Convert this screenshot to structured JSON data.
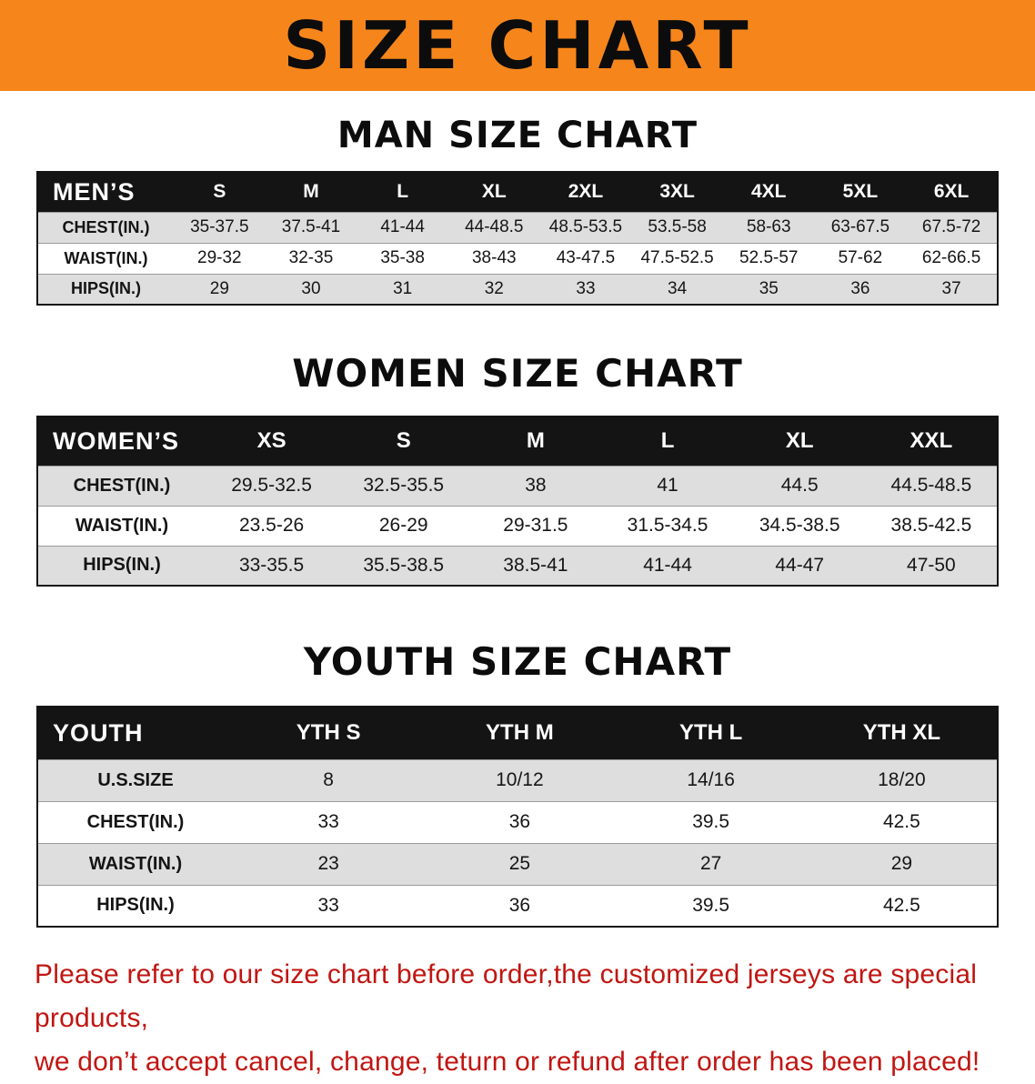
{
  "banner": {
    "title": "SIZE CHART"
  },
  "colors": {
    "banner_bg": "#f6861b",
    "header_bg": "#141414",
    "header_text": "#ffffff",
    "row_shade": "#dedede",
    "notice_text": "#c01612"
  },
  "sections": [
    {
      "key": "men",
      "heading": "MAN SIZE CHART",
      "corner_label": "MEN’S",
      "columns": [
        "S",
        "M",
        "L",
        "XL",
        "2XL",
        "3XL",
        "4XL",
        "5XL",
        "6XL"
      ],
      "rows": [
        {
          "label": "CHEST(IN.)",
          "values": [
            "35-37.5",
            "37.5-41",
            "41-44",
            "44-48.5",
            "48.5-53.5",
            "53.5-58",
            "58-63",
            "63-67.5",
            "67.5-72"
          ]
        },
        {
          "label": "WAIST(IN.)",
          "values": [
            "29-32",
            "32-35",
            "35-38",
            "38-43",
            "43-47.5",
            "47.5-52.5",
            "52.5-57",
            "57-62",
            "62-66.5"
          ]
        },
        {
          "label": "HIPS(IN.)",
          "values": [
            "29",
            "30",
            "31",
            "32",
            "33",
            "34",
            "35",
            "36",
            "37"
          ]
        }
      ]
    },
    {
      "key": "women",
      "heading": "WOMEN SIZE CHART",
      "corner_label": "WOMEN’S",
      "columns": [
        "XS",
        "S",
        "M",
        "L",
        "XL",
        "XXL"
      ],
      "rows": [
        {
          "label": "CHEST(IN.)",
          "values": [
            "29.5-32.5",
            "32.5-35.5",
            "38",
            "41",
            "44.5",
            "44.5-48.5"
          ]
        },
        {
          "label": "WAIST(IN.)",
          "values": [
            "23.5-26",
            "26-29",
            "29-31.5",
            "31.5-34.5",
            "34.5-38.5",
            "38.5-42.5"
          ]
        },
        {
          "label": "HIPS(IN.)",
          "values": [
            "33-35.5",
            "35.5-38.5",
            "38.5-41",
            "41-44",
            "44-47",
            "47-50"
          ]
        }
      ]
    },
    {
      "key": "youth",
      "heading": "YOUTH SIZE CHART",
      "corner_label": "YOUTH",
      "columns": [
        "YTH S",
        "YTH M",
        "YTH L",
        "YTH XL"
      ],
      "rows": [
        {
          "label": "U.S.SIZE",
          "values": [
            "8",
            "10/12",
            "14/16",
            "18/20"
          ]
        },
        {
          "label": "CHEST(IN.)",
          "values": [
            "33",
            "36",
            "39.5",
            "42.5"
          ]
        },
        {
          "label": "WAIST(IN.)",
          "values": [
            "23",
            "25",
            "27",
            "29"
          ]
        },
        {
          "label": "HIPS(IN.)",
          "values": [
            "33",
            "36",
            "39.5",
            "42.5"
          ]
        }
      ]
    }
  ],
  "footer": {
    "line1": "Please refer to our size chart before order,the customized jerseys are special products,",
    "line2": "we don’t accept cancel, change, teturn or refund after order has been placed!"
  }
}
